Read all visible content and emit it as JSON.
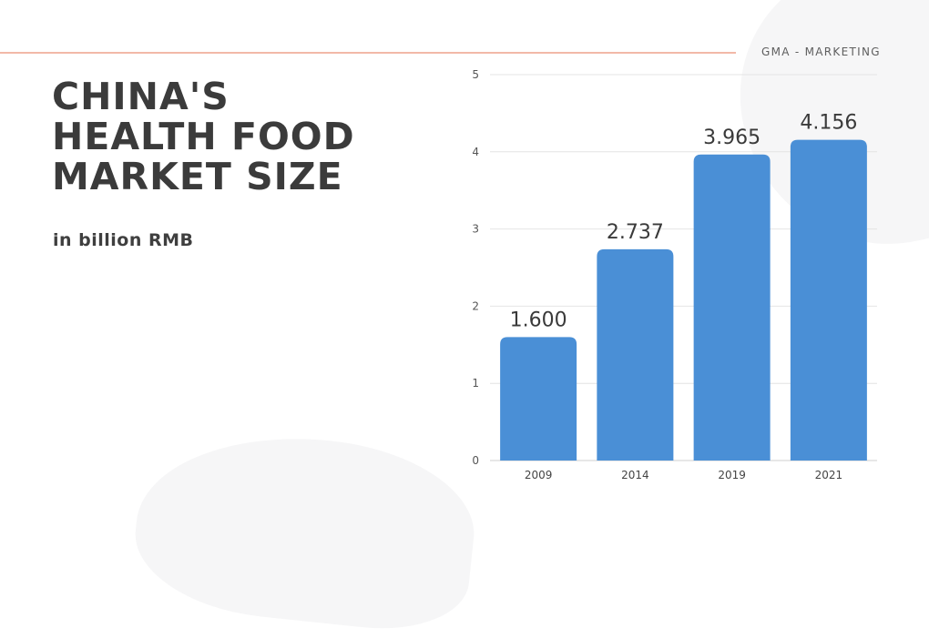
{
  "brand": "GMA - MARKETING",
  "title": "CHINA'S\nHEALTH FOOD\nMARKET SIZE",
  "subtitle": "in billion RMB",
  "colors": {
    "bar": "#4a8fd6",
    "grid": "#e4e4e4",
    "rule": "#f2b9a8",
    "title": "#3b3b3b"
  },
  "chart_data": {
    "type": "bar",
    "categories": [
      "2009",
      "2014",
      "2019",
      "2021"
    ],
    "values": [
      1.6,
      2.737,
      3.965,
      4.156
    ],
    "data_labels": [
      "1.600",
      "2.737",
      "3.965",
      "4.156"
    ],
    "title": "",
    "xlabel": "",
    "ylabel": "",
    "ylim": [
      0,
      5
    ],
    "yticks": [
      0,
      1,
      2,
      3,
      4,
      5
    ],
    "grid": true,
    "legend": "none"
  }
}
